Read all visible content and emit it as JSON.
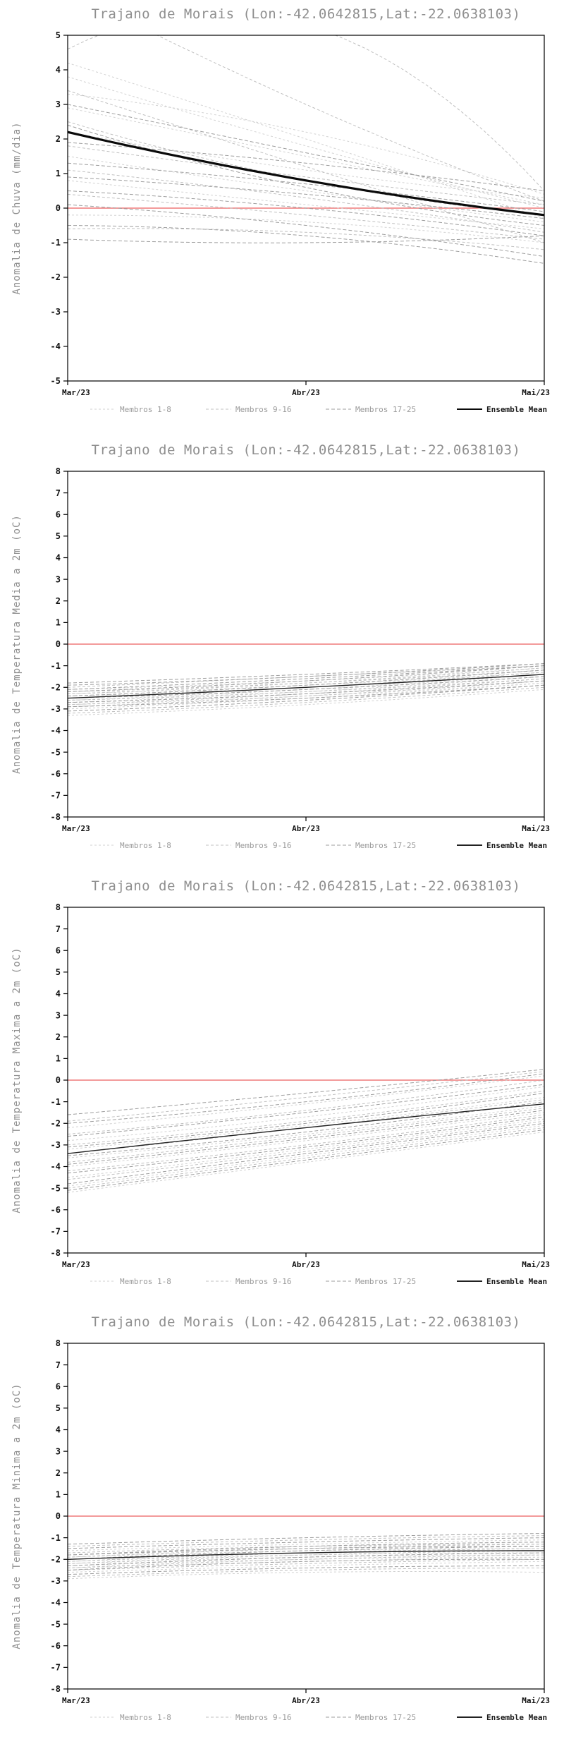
{
  "station_title": "Trajano de Morais (Lon:-42.0642815,Lat:-22.0638103)",
  "chart_data": [
    {
      "type": "line",
      "title": "Trajano de Morais (Lon:-42.0642815,Lat:-22.0638103)",
      "ylabel": "Anomalia de Chuva (mm/dia)",
      "x_ticklabels": [
        "Mar/23",
        "Abr/23",
        "Mai/23"
      ],
      "ylim": [
        -5,
        5
      ],
      "ytick_step": 1,
      "grid": false,
      "zero_line_color": "#ef7a7a",
      "legend": [
        {
          "label": "Membros 1-8",
          "style": "dashed",
          "color": "#d2d2d2"
        },
        {
          "label": "Membros 9-16",
          "style": "dashed",
          "color": "#c0c0c0"
        },
        {
          "label": "Membros 17-25",
          "style": "dashed",
          "color": "#9e9e9e"
        },
        {
          "label": "Ensemble Mean",
          "style": "solid",
          "color": "#0a0a0a"
        }
      ],
      "mean": {
        "name": "Ensemble Mean",
        "values": [
          2.2,
          0.8,
          -0.2
        ],
        "width": 3.2
      },
      "members": [
        {
          "group": "Membros 1-8",
          "values": [
            [
              4.2,
              2.0,
              -0.3
            ],
            [
              3.8,
              1.8,
              0.0
            ],
            [
              3.3,
              2.2,
              0.4
            ],
            [
              2.9,
              1.5,
              0.1
            ],
            [
              2.2,
              1.1,
              0.3
            ],
            [
              1.5,
              0.5,
              -0.4
            ],
            [
              0.8,
              0.1,
              -0.6
            ],
            [
              -0.2,
              -0.4,
              -1.0
            ]
          ]
        },
        {
          "group": "Membros 9-16",
          "values": [
            [
              6.3,
              3.0,
              0.2
            ],
            [
              4.6,
              5.3,
              0.5
            ],
            [
              3.4,
              1.2,
              -1.0
            ],
            [
              2.5,
              0.8,
              -0.2
            ],
            [
              1.8,
              0.9,
              0.1
            ],
            [
              1.1,
              0.3,
              -0.7
            ],
            [
              0.4,
              -0.2,
              -0.9
            ],
            [
              -0.6,
              -0.7,
              -1.2
            ]
          ]
        },
        {
          "group": "Membros 17-25",
          "values": [
            [
              3.0,
              1.6,
              0.2
            ],
            [
              2.4,
              0.6,
              -0.5
            ],
            [
              1.9,
              1.3,
              0.5
            ],
            [
              1.3,
              0.7,
              -0.1
            ],
            [
              0.9,
              0.4,
              -0.3
            ],
            [
              0.5,
              0.0,
              -0.8
            ],
            [
              0.1,
              -0.5,
              -1.4
            ],
            [
              -0.5,
              -0.8,
              -1.6
            ],
            [
              -0.9,
              -1.0,
              -0.8
            ]
          ]
        }
      ]
    },
    {
      "type": "line",
      "title": "Trajano de Morais (Lon:-42.0642815,Lat:-22.0638103)",
      "ylabel": "Anomalia de Temperatura Media a 2m (oC)",
      "x_ticklabels": [
        "Mar/23",
        "Abr/23",
        "Mai/23"
      ],
      "ylim": [
        -8,
        8
      ],
      "ytick_step": 1,
      "grid": false,
      "zero_line_color": "#ef7a7a",
      "legend": [
        {
          "label": "Membros 1-8",
          "style": "dashed",
          "color": "#d2d2d2"
        },
        {
          "label": "Membros 9-16",
          "style": "dashed",
          "color": "#c0c0c0"
        },
        {
          "label": "Membros 17-25",
          "style": "dashed",
          "color": "#9e9e9e"
        },
        {
          "label": "Ensemble Mean",
          "style": "solid",
          "color": "#222222"
        }
      ],
      "mean": {
        "name": "Ensemble Mean",
        "values": [
          -2.5,
          -2.0,
          -1.4
        ],
        "width": 1.4
      },
      "members": [
        {
          "group": "Membros 1-8",
          "values": [
            [
              -3.3,
              -2.8,
              -2.1
            ],
            [
              -3.0,
              -2.5,
              -1.8
            ],
            [
              -2.8,
              -2.4,
              -1.8
            ],
            [
              -2.7,
              -2.2,
              -1.5
            ],
            [
              -2.6,
              -2.1,
              -1.4
            ],
            [
              -2.4,
              -2.0,
              -1.4
            ],
            [
              -2.3,
              -1.9,
              -1.3
            ],
            [
              -2.1,
              -1.7,
              -1.1
            ]
          ]
        },
        {
          "group": "Membros 9-16",
          "values": [
            [
              -3.2,
              -2.7,
              -2.0
            ],
            [
              -2.9,
              -2.4,
              -1.7
            ],
            [
              -2.8,
              -2.3,
              -1.6
            ],
            [
              -2.6,
              -2.2,
              -1.6
            ],
            [
              -2.5,
              -2.0,
              -1.3
            ],
            [
              -2.3,
              -1.8,
              -1.1
            ],
            [
              -2.2,
              -1.8,
              -1.2
            ],
            [
              -2.0,
              -1.5,
              -1.0
            ]
          ]
        },
        {
          "group": "Membros 17-25",
          "values": [
            [
              -3.1,
              -2.6,
              -1.9
            ],
            [
              -2.9,
              -2.5,
              -1.9
            ],
            [
              -2.7,
              -2.3,
              -1.7
            ],
            [
              -2.5,
              -2.1,
              -1.5
            ],
            [
              -2.4,
              -1.9,
              -1.2
            ],
            [
              -2.2,
              -1.7,
              -1.0
            ],
            [
              -2.1,
              -1.6,
              -1.0
            ],
            [
              -1.9,
              -1.5,
              -0.9
            ],
            [
              -1.8,
              -1.4,
              -0.9
            ]
          ]
        }
      ]
    },
    {
      "type": "line",
      "title": "Trajano de Morais (Lon:-42.0642815,Lat:-22.0638103)",
      "ylabel": "Anomalia de Temperatura Maxima a 2m (oC)",
      "x_ticklabels": [
        "Mar/23",
        "Abr/23",
        "Mai/23"
      ],
      "ylim": [
        -8,
        8
      ],
      "ytick_step": 1,
      "grid": false,
      "zero_line_color": "#ef7a7a",
      "legend": [
        {
          "label": "Membros 1-8",
          "style": "dashed",
          "color": "#d2d2d2"
        },
        {
          "label": "Membros 9-16",
          "style": "dashed",
          "color": "#c0c0c0"
        },
        {
          "label": "Membros 17-25",
          "style": "dashed",
          "color": "#9e9e9e"
        },
        {
          "label": "Ensemble Mean",
          "style": "solid",
          "color": "#222222"
        }
      ],
      "mean": {
        "name": "Ensemble Mean",
        "values": [
          -3.4,
          -2.2,
          -1.1
        ],
        "width": 1.4
      },
      "members": [
        {
          "group": "Membros 1-8",
          "values": [
            [
              -5.2,
              -3.8,
              -2.4
            ],
            [
              -4.9,
              -3.5,
              -2.1
            ],
            [
              -4.5,
              -3.2,
              -1.8
            ],
            [
              -4.0,
              -2.8,
              -1.5
            ],
            [
              -3.6,
              -2.5,
              -1.2
            ],
            [
              -3.2,
              -2.1,
              -0.8
            ],
            [
              -2.8,
              -1.7,
              -0.3
            ],
            [
              -2.2,
              -1.1,
              0.2
            ]
          ]
        },
        {
          "group": "Membros 9-16",
          "values": [
            [
              -5.0,
              -3.6,
              -2.2
            ],
            [
              -4.6,
              -3.3,
              -1.9
            ],
            [
              -4.2,
              -3.0,
              -1.6
            ],
            [
              -3.8,
              -2.6,
              -1.3
            ],
            [
              -3.4,
              -2.2,
              -0.9
            ],
            [
              -3.0,
              -1.9,
              -0.5
            ],
            [
              -2.5,
              -1.4,
              0.0
            ],
            [
              -1.9,
              -0.8,
              0.4
            ]
          ]
        },
        {
          "group": "Membros 17-25",
          "values": [
            [
              -5.1,
              -3.7,
              -2.3
            ],
            [
              -4.8,
              -3.4,
              -2.0
            ],
            [
              -4.3,
              -3.1,
              -1.7
            ],
            [
              -3.9,
              -2.7,
              -1.4
            ],
            [
              -3.5,
              -2.4,
              -1.0
            ],
            [
              -3.1,
              -2.0,
              -0.6
            ],
            [
              -2.6,
              -1.5,
              -0.2
            ],
            [
              -2.0,
              -1.0,
              0.3
            ],
            [
              -1.6,
              -0.6,
              0.5
            ]
          ]
        }
      ]
    },
    {
      "type": "line",
      "title": "Trajano de Morais (Lon:-42.0642815,Lat:-22.0638103)",
      "ylabel": "Anomalia de Temperatura Minima a 2m (oC)",
      "x_ticklabels": [
        "Mar/23",
        "Abr/23",
        "Mai/23"
      ],
      "ylim": [
        -8,
        8
      ],
      "ytick_step": 1,
      "grid": false,
      "zero_line_color": "#ef7a7a",
      "legend": [
        {
          "label": "Membros 1-8",
          "style": "dashed",
          "color": "#d2d2d2"
        },
        {
          "label": "Membros 9-16",
          "style": "dashed",
          "color": "#c0c0c0"
        },
        {
          "label": "Membros 17-25",
          "style": "dashed",
          "color": "#9e9e9e"
        },
        {
          "label": "Ensemble Mean",
          "style": "solid",
          "color": "#222222"
        }
      ],
      "mean": {
        "name": "Ensemble Mean",
        "values": [
          -2.0,
          -1.7,
          -1.6
        ],
        "width": 1.4
      },
      "members": [
        {
          "group": "Membros 1-8",
          "values": [
            [
              -2.9,
              -2.6,
              -2.6
            ],
            [
              -2.6,
              -2.3,
              -2.1
            ],
            [
              -2.4,
              -2.1,
              -1.9
            ],
            [
              -2.3,
              -2.0,
              -1.9
            ],
            [
              -2.2,
              -1.9,
              -1.8
            ],
            [
              -2.1,
              -1.8,
              -1.7
            ],
            [
              -1.9,
              -1.6,
              -1.5
            ],
            [
              -1.6,
              -1.3,
              -1.1
            ]
          ]
        },
        {
          "group": "Membros 9-16",
          "values": [
            [
              -2.8,
              -2.5,
              -2.4
            ],
            [
              -2.5,
              -2.2,
              -2.0
            ],
            [
              -2.4,
              -2.0,
              -1.8
            ],
            [
              -2.2,
              -1.8,
              -1.6
            ],
            [
              -2.1,
              -1.7,
              -1.5
            ],
            [
              -1.9,
              -1.5,
              -1.3
            ],
            [
              -1.7,
              -1.4,
              -1.3
            ],
            [
              -1.4,
              -1.1,
              -0.9
            ]
          ]
        },
        {
          "group": "Membros 17-25",
          "values": [
            [
              -2.7,
              -2.4,
              -2.3
            ],
            [
              -2.5,
              -2.1,
              -2.0
            ],
            [
              -2.3,
              -1.9,
              -1.7
            ],
            [
              -2.0,
              -1.7,
              -1.6
            ],
            [
              -2.0,
              -1.6,
              -1.4
            ],
            [
              -1.8,
              -1.5,
              -1.4
            ],
            [
              -1.8,
              -1.4,
              -1.2
            ],
            [
              -1.5,
              -1.2,
              -1.0
            ],
            [
              -1.3,
              -1.0,
              -0.8
            ]
          ]
        }
      ]
    }
  ]
}
